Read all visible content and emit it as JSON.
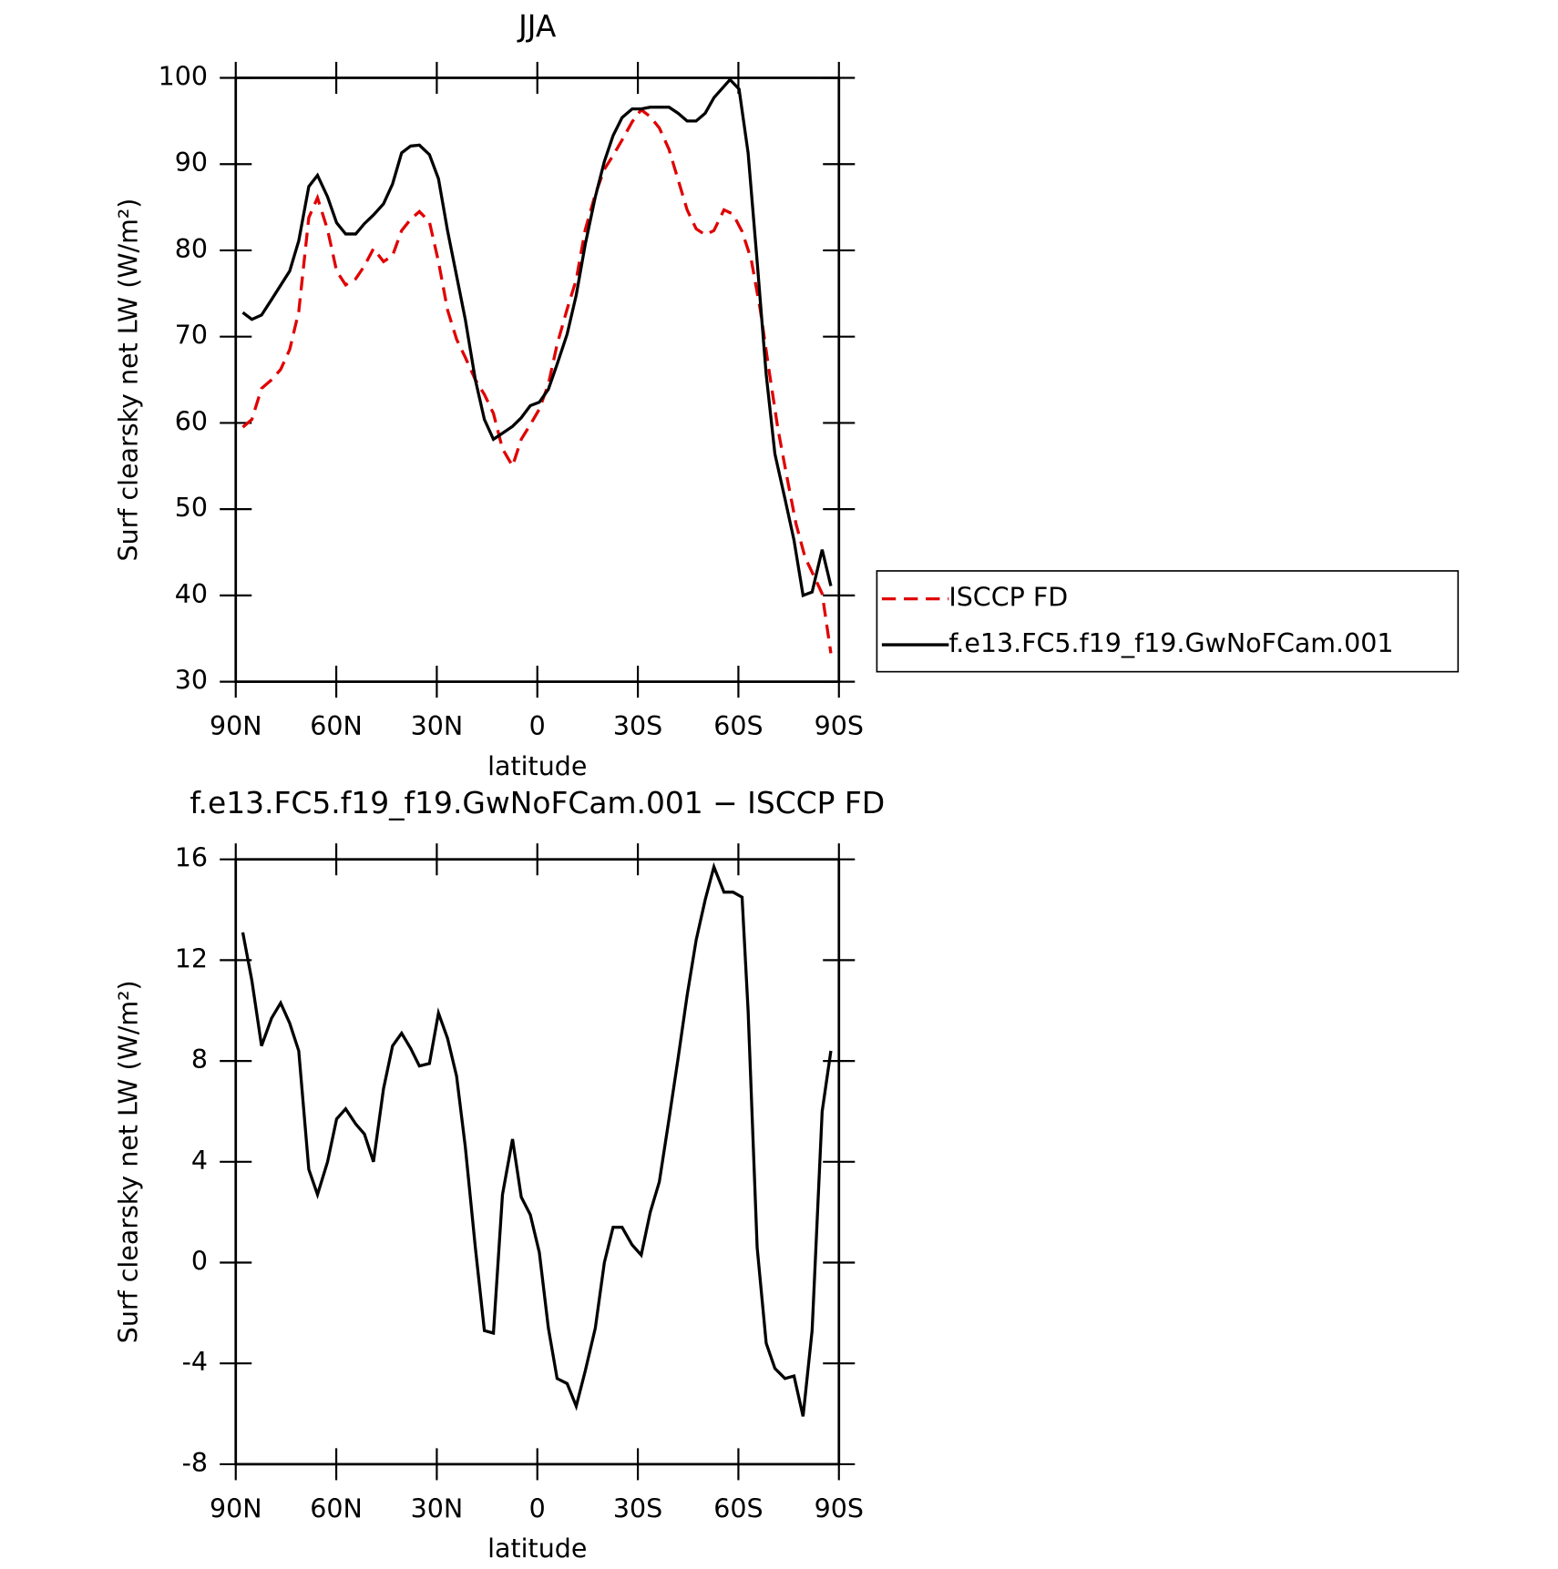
{
  "chart_data": [
    {
      "type": "line",
      "title": "JJA",
      "xlabel": "latitude",
      "ylabel": "Surf clearsky net LW (W/m²)",
      "xlim": [
        90,
        -90
      ],
      "xticks": [
        {
          "value": 90,
          "label": "90N"
        },
        {
          "value": 60,
          "label": "60N"
        },
        {
          "value": 30,
          "label": "30N"
        },
        0,
        {
          "value": -30,
          "label": "30S"
        },
        {
          "value": -60,
          "label": "60S"
        },
        {
          "value": -90,
          "label": "90S"
        }
      ],
      "ylim": [
        30,
        100
      ],
      "yticks": [
        30,
        40,
        50,
        60,
        70,
        80,
        90,
        100
      ],
      "legend": "right",
      "series": [
        {
          "name": "ISCCP FD",
          "color": "#e00000",
          "line_style": "dashed",
          "x": [
            87.9,
            85.2,
            82.3,
            79.3,
            76.6,
            73.9,
            71.2,
            68.2,
            65.6,
            62.6,
            59.9,
            57.2,
            54.2,
            51.6,
            48.9,
            45.9,
            43.2,
            40.5,
            37.8,
            35.2,
            32.2,
            29.5,
            26.8,
            24.1,
            21.5,
            18.5,
            15.8,
            13.1,
            10.4,
            7.4,
            4.8,
            2.1,
            -0.6,
            -3.3,
            -5.9,
            -8.9,
            -11.6,
            -14.3,
            -17.3,
            -20.0,
            -22.6,
            -25.3,
            -28.3,
            -31.0,
            -33.7,
            -36.4,
            -39.3,
            -42.0,
            -44.7,
            -47.4,
            -50.1,
            -52.7,
            -55.7,
            -58.4,
            -61.1,
            -63.8,
            -66.5,
            -69.1,
            -71.8,
            -74.5,
            -77.2,
            -79.9,
            -82.6,
            -85.0,
            -87.6
          ],
          "values": [
            59.5,
            60.4,
            64.0,
            65.0,
            66.2,
            68.5,
            72.9,
            83.8,
            86.1,
            82.4,
            77.6,
            76.0,
            76.7,
            78.2,
            80.2,
            78.7,
            79.4,
            82.3,
            83.6,
            84.5,
            83.3,
            78.7,
            73.1,
            69.7,
            67.6,
            65.0,
            63.3,
            61.1,
            57.0,
            55.0,
            58.1,
            59.8,
            61.6,
            64.5,
            69.1,
            73.2,
            76.6,
            82.4,
            86.5,
            89.4,
            91.0,
            92.8,
            94.9,
            96.3,
            95.5,
            94.2,
            91.7,
            88.2,
            84.7,
            82.5,
            81.8,
            82.3,
            84.7,
            84.2,
            82.2,
            79.0,
            73.2,
            66.2,
            59.3,
            53.7,
            48.3,
            44.4,
            42.2,
            40.2,
            33.3
          ]
        },
        {
          "name": "f.e13.FC5.f19_f19.GwNoFCam.001",
          "color": "#000000",
          "line_style": "solid",
          "x": [
            87.9,
            85.2,
            82.3,
            79.3,
            73.9,
            71.2,
            68.2,
            65.6,
            62.6,
            59.9,
            57.2,
            54.2,
            51.6,
            48.9,
            45.9,
            43.2,
            40.5,
            37.8,
            35.2,
            32.2,
            29.5,
            26.8,
            21.5,
            18.5,
            15.8,
            13.1,
            10.4,
            7.4,
            4.8,
            2.1,
            -0.6,
            -3.3,
            -5.9,
            -8.9,
            -11.6,
            -14.3,
            -17.3,
            -20.0,
            -22.6,
            -25.3,
            -28.3,
            -31.0,
            -33.7,
            -36.4,
            -39.3,
            -42.0,
            -44.7,
            -47.4,
            -50.1,
            -52.7,
            -57.5,
            -60.2,
            -62.9,
            -65.6,
            -68.3,
            -70.9,
            -73.9,
            -76.6,
            -79.3,
            -82.0,
            -85.0,
            -87.6
          ],
          "values": [
            72.8,
            72.0,
            72.5,
            74.3,
            77.6,
            81.1,
            87.4,
            88.7,
            86.2,
            83.2,
            81.9,
            81.9,
            83.1,
            84.1,
            85.4,
            87.7,
            91.3,
            92.1,
            92.2,
            91.1,
            88.3,
            82.3,
            72.0,
            65.0,
            60.4,
            58.1,
            58.8,
            59.6,
            60.6,
            62.0,
            62.4,
            63.9,
            66.8,
            70.3,
            74.8,
            80.7,
            86.2,
            90.3,
            93.3,
            95.4,
            96.4,
            96.4,
            96.6,
            96.6,
            96.6,
            95.9,
            95.0,
            95.0,
            95.9,
            97.7,
            99.8,
            98.7,
            91.3,
            78.7,
            65.6,
            56.4,
            51.2,
            46.4,
            40.0,
            40.4,
            45.3,
            41.1
          ]
        }
      ]
    },
    {
      "type": "line",
      "title": "f.e13.FC5.f19_f19.GwNoFCam.001 − ISCCP FD",
      "xlabel": "latitude",
      "ylabel": "Surf clearsky net LW (W/m²)",
      "xlim": [
        90,
        -90
      ],
      "xticks": [
        {
          "value": 90,
          "label": "90N"
        },
        {
          "value": 60,
          "label": "60N"
        },
        {
          "value": 30,
          "label": "30N"
        },
        0,
        {
          "value": -30,
          "label": "30S"
        },
        {
          "value": -60,
          "label": "60S"
        },
        {
          "value": -90,
          "label": "90S"
        }
      ],
      "ylim": [
        -8,
        16
      ],
      "yticks": [
        -8,
        -4,
        0,
        4,
        8,
        12,
        16
      ],
      "color": "#000000",
      "x": [
        87.9,
        85.2,
        82.3,
        79.3,
        76.6,
        73.9,
        71.2,
        68.2,
        65.6,
        62.6,
        59.9,
        57.2,
        54.2,
        51.6,
        48.9,
        45.9,
        43.2,
        40.5,
        37.8,
        35.2,
        32.2,
        29.5,
        26.8,
        24.1,
        21.5,
        18.5,
        15.8,
        13.1,
        10.4,
        7.4,
        4.8,
        2.1,
        -0.6,
        -3.3,
        -5.9,
        -8.9,
        -11.6,
        -14.3,
        -17.3,
        -20.0,
        -22.6,
        -25.3,
        -28.3,
        -31.0,
        -33.7,
        -36.4,
        -39.3,
        -42.0,
        -44.7,
        -47.4,
        -50.1,
        -52.7,
        -55.7,
        -58.4,
        -61.1,
        -62.9,
        -65.6,
        -68.3,
        -70.9,
        -73.9,
        -76.6,
        -79.3,
        -82.0,
        -85.0,
        -87.6
      ],
      "values": [
        13.1,
        11.2,
        8.6,
        9.7,
        10.3,
        9.5,
        8.4,
        3.7,
        2.7,
        4.0,
        5.7,
        6.1,
        5.5,
        5.1,
        4.0,
        6.9,
        8.6,
        9.1,
        8.5,
        7.8,
        7.9,
        9.9,
        8.9,
        7.4,
        4.6,
        0.6,
        -2.7,
        -2.8,
        2.7,
        4.9,
        2.6,
        1.9,
        0.4,
        -2.6,
        -4.6,
        -4.8,
        -5.7,
        -4.3,
        -2.6,
        0.0,
        1.4,
        1.4,
        0.7,
        0.3,
        2.0,
        3.2,
        5.7,
        8.1,
        10.6,
        12.8,
        14.4,
        15.7,
        14.7,
        14.7,
        14.5,
        10.0,
        0.6,
        -3.2,
        -4.2,
        -4.6,
        -4.5,
        -6.1,
        -2.7,
        6.0,
        8.4
      ]
    }
  ]
}
